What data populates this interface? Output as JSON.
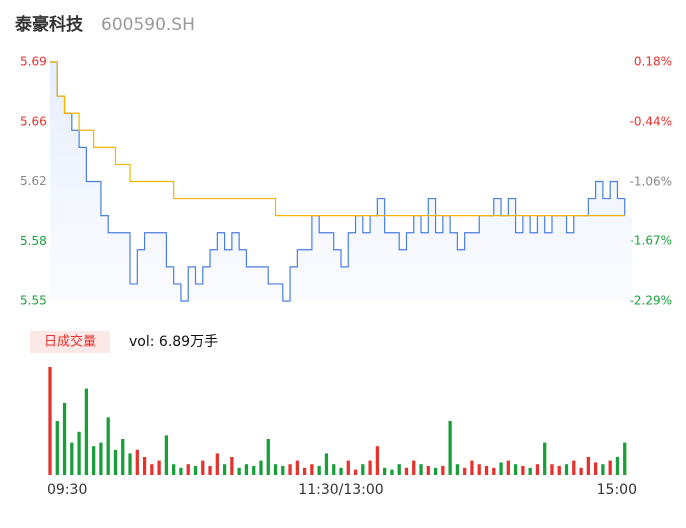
{
  "chart_data": {
    "type": "intraday",
    "title": "泰豪科技",
    "subtitle": "600590.SH",
    "xlim": [
      0,
      240
    ],
    "xticks": [
      {
        "value": 0,
        "label": "09:30"
      },
      {
        "value": 120,
        "label": "11:30/13:00"
      },
      {
        "value": 240,
        "label": "15:00"
      }
    ],
    "ylim": [
      5.55,
      5.69
    ],
    "yticks": [
      {
        "value": 5.55,
        "label": "5.55"
      },
      {
        "value": 5.585,
        "label": "5.58"
      },
      {
        "value": 5.62,
        "label": "5.62"
      },
      {
        "value": 5.655,
        "label": "5.66"
      },
      {
        "value": 5.69,
        "label": "5.69"
      }
    ],
    "y2lim": [
      -2.29,
      0.18
    ],
    "y2ticks": [
      {
        "value": -2.29,
        "label": "-2.29%"
      },
      {
        "value": -1.67,
        "label": "-1.67%"
      },
      {
        "value": -1.06,
        "label": "-1.06%"
      },
      {
        "value": -0.44,
        "label": "-0.44%"
      },
      {
        "value": 0.18,
        "label": "0.18%"
      }
    ],
    "tick_colors": [
      "#1a9e3a",
      "#1a9e3a",
      "#888888",
      "#e5322d",
      "#e5322d"
    ],
    "x": [
      0,
      3,
      6,
      9,
      12,
      15,
      18,
      21,
      24,
      27,
      30,
      33,
      36,
      39,
      42,
      45,
      48,
      51,
      54,
      57,
      60,
      63,
      66,
      69,
      72,
      75,
      78,
      81,
      84,
      87,
      90,
      93,
      96,
      99,
      102,
      105,
      108,
      111,
      114,
      117,
      120,
      123,
      126,
      129,
      132,
      135,
      138,
      141,
      144,
      147,
      150,
      153,
      156,
      159,
      162,
      165,
      168,
      171,
      174,
      177,
      180,
      183,
      186,
      189,
      192,
      195,
      198,
      201,
      204,
      207,
      210,
      213,
      216,
      219,
      222,
      225,
      228,
      231,
      234,
      237
    ],
    "series": [
      {
        "name": "price",
        "color": "#4a7fe0",
        "values": [
          5.69,
          5.67,
          5.66,
          5.65,
          5.64,
          5.62,
          5.62,
          5.6,
          5.59,
          5.59,
          5.59,
          5.56,
          5.58,
          5.59,
          5.59,
          5.59,
          5.57,
          5.56,
          5.55,
          5.57,
          5.56,
          5.57,
          5.58,
          5.59,
          5.58,
          5.59,
          5.58,
          5.57,
          5.57,
          5.57,
          5.56,
          5.56,
          5.55,
          5.57,
          5.58,
          5.58,
          5.6,
          5.59,
          5.59,
          5.58,
          5.57,
          5.59,
          5.6,
          5.59,
          5.6,
          5.61,
          5.59,
          5.59,
          5.58,
          5.59,
          5.6,
          5.59,
          5.61,
          5.59,
          5.6,
          5.59,
          5.58,
          5.59,
          5.59,
          5.6,
          5.6,
          5.61,
          5.6,
          5.61,
          5.59,
          5.6,
          5.59,
          5.6,
          5.59,
          5.6,
          5.6,
          5.59,
          5.6,
          5.6,
          5.61,
          5.62,
          5.61,
          5.62,
          5.61,
          5.6
        ]
      },
      {
        "name": "average",
        "color": "#f5b400",
        "values": [
          5.69,
          5.67,
          5.66,
          5.66,
          5.65,
          5.65,
          5.64,
          5.64,
          5.64,
          5.63,
          5.63,
          5.62,
          5.62,
          5.62,
          5.62,
          5.62,
          5.62,
          5.61,
          5.61,
          5.61,
          5.61,
          5.61,
          5.61,
          5.61,
          5.61,
          5.61,
          5.61,
          5.61,
          5.61,
          5.61,
          5.61,
          5.6,
          5.6,
          5.6,
          5.6,
          5.6,
          5.6,
          5.6,
          5.6,
          5.6,
          5.6,
          5.6,
          5.6,
          5.6,
          5.6,
          5.6,
          5.6,
          5.6,
          5.6,
          5.6,
          5.6,
          5.6,
          5.6,
          5.6,
          5.6,
          5.6,
          5.6,
          5.6,
          5.6,
          5.6,
          5.6,
          5.6,
          5.6,
          5.6,
          5.6,
          5.6,
          5.6,
          5.6,
          5.6,
          5.6,
          5.6,
          5.6,
          5.6,
          5.6,
          5.6,
          5.6,
          5.6,
          5.6,
          5.6,
          5.6
        ]
      }
    ],
    "volume_label": "日成交量",
    "volume_total": "vol: 6.89万手",
    "up_color": "#e5322d",
    "down_color": "#1a9e3a",
    "volume": [
      3000,
      1500,
      2000,
      900,
      1200,
      2400,
      800,
      900,
      1600,
      700,
      1000,
      600,
      700,
      500,
      300,
      400,
      1100,
      300,
      200,
      300,
      250,
      400,
      250,
      600,
      300,
      500,
      200,
      300,
      250,
      400,
      1000,
      300,
      250,
      300,
      400,
      200,
      300,
      250,
      600,
      300,
      200,
      400,
      150,
      300,
      400,
      800,
      200,
      150,
      300,
      200,
      400,
      300,
      250,
      200,
      250,
      1500,
      300,
      200,
      400,
      300,
      250,
      200,
      350,
      400,
      300,
      250,
      200,
      300,
      900,
      300,
      250,
      300,
      400,
      200,
      500,
      350,
      300,
      400,
      500,
      900
    ]
  }
}
